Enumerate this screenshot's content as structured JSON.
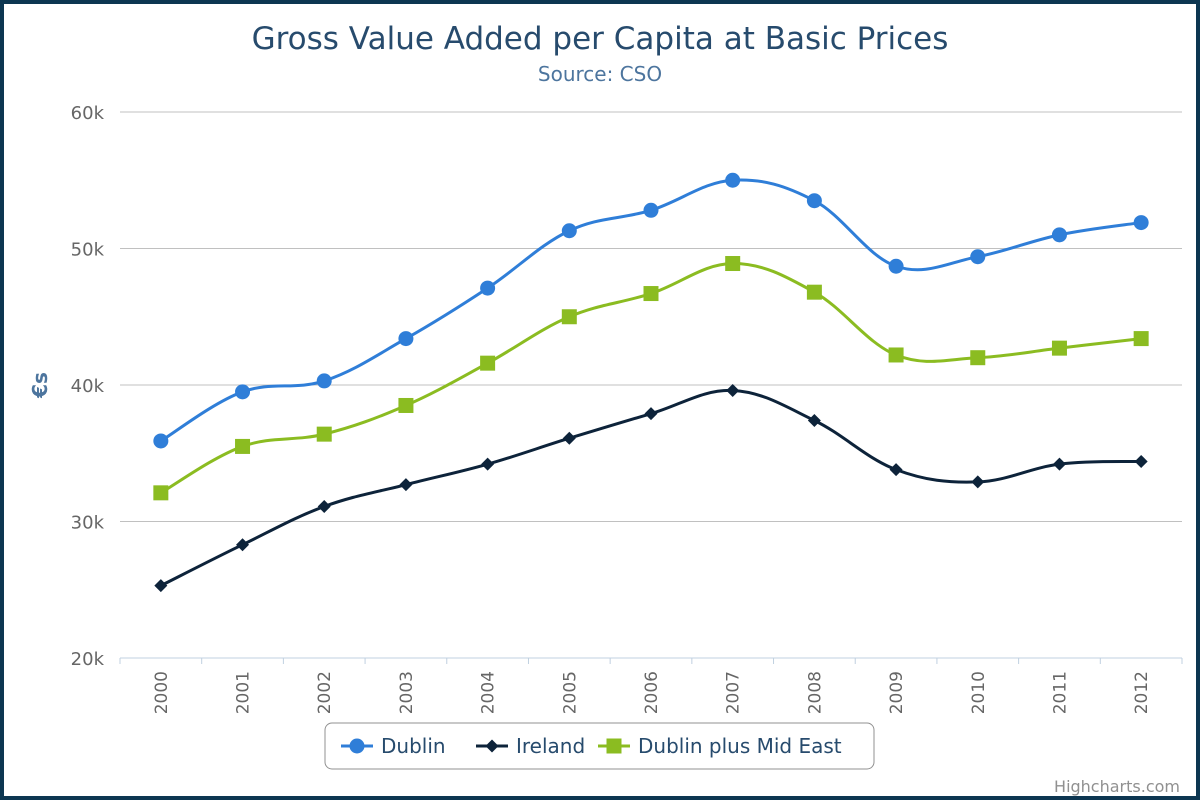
{
  "chart_data": {
    "type": "line",
    "title": "Gross Value Added per Capita at Basic Prices",
    "subtitle": "Source: CSO",
    "xlabel": "",
    "ylabel": "€s",
    "categories": [
      "2000",
      "2001",
      "2002",
      "2003",
      "2004",
      "2005",
      "2006",
      "2007",
      "2008",
      "2009",
      "2010",
      "2011",
      "2012"
    ],
    "ylim": [
      20000,
      60000
    ],
    "yticks": [
      20000,
      30000,
      40000,
      50000,
      60000
    ],
    "ytick_labels": [
      "20k",
      "30k",
      "40k",
      "50k",
      "60k"
    ],
    "grid": true,
    "legend_position": "bottom-center",
    "credits": "Highcharts.com",
    "series": [
      {
        "name": "Dublin",
        "color": "#2f7ed8",
        "marker": "circle",
        "values": [
          35900,
          39500,
          40300,
          43400,
          47100,
          51300,
          52800,
          55000,
          53500,
          48700,
          49400,
          51000,
          51900
        ]
      },
      {
        "name": "Ireland",
        "color": "#0d233a",
        "marker": "diamond",
        "values": [
          25300,
          28300,
          31100,
          32700,
          34200,
          36100,
          37900,
          39600,
          37400,
          33800,
          32900,
          34200,
          34400
        ]
      },
      {
        "name": "Dublin plus Mid East",
        "color": "#8bbc21",
        "marker": "square",
        "values": [
          32100,
          35500,
          36400,
          38500,
          41600,
          45000,
          46700,
          48900,
          46800,
          42200,
          42000,
          42700,
          43400
        ]
      }
    ]
  }
}
